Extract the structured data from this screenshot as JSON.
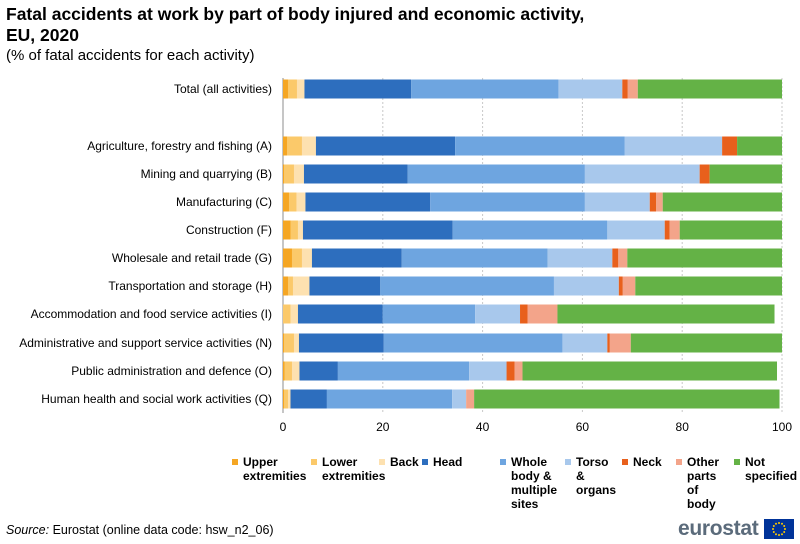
{
  "title": "Fatal accidents at work by part of body injured and economic activity, EU, 2020",
  "subtitle": "(% of fatal accidents for each activity)",
  "source_label": "Source:",
  "source_text": "Eurostat (online data code: hsw_n2_06)",
  "logo_text": "eurostat",
  "chart_data": {
    "type": "bar",
    "orientation": "horizontal",
    "stacked": true,
    "title": "Fatal accidents at work by part of body injured and economic activity, EU, 2020",
    "subtitle": "(% of fatal accidents for each activity)",
    "xlim": [
      0,
      100
    ],
    "xticks": [
      0,
      20,
      40,
      60,
      80,
      100
    ],
    "grid": "vertical dashed",
    "legend_position": "bottom",
    "categories": [
      "Total (all activities)",
      "Agriculture, forestry and fishing (A)",
      "Mining and quarrying (B)",
      "Manufacturing (C)",
      "Construction (F)",
      "Wholesale and retail trade (G)",
      "Transportation and storage (H)",
      "Accommodation and food service activities (I)",
      "Administrative and support service activities (N)",
      "Public administration and defence (O)",
      "Human health and social work activities (Q)"
    ],
    "series": [
      {
        "name": "Upper\nextremities",
        "color": "#f5a623",
        "values": [
          1.0,
          0.8,
          0.2,
          1.2,
          1.5,
          1.8,
          1.0,
          0.0,
          0.2,
          0.3,
          0.2
        ]
      },
      {
        "name": "Lower\nextremities",
        "color": "#fbc96a",
        "values": [
          1.8,
          3.0,
          2.0,
          1.5,
          1.5,
          2.0,
          1.0,
          1.5,
          2.0,
          1.5,
          0.8
        ]
      },
      {
        "name": "Back",
        "color": "#fde1b0",
        "values": [
          1.5,
          2.8,
          2.0,
          1.8,
          1.0,
          2.0,
          3.3,
          1.5,
          1.0,
          1.5,
          0.5
        ]
      },
      {
        "name": "Head",
        "color": "#2d6ebe",
        "values": [
          21.4,
          27.9,
          20.8,
          25.0,
          30.0,
          18.0,
          14.2,
          17.0,
          17.0,
          7.7,
          7.3
        ]
      },
      {
        "name": "Whole\nbody &\nmultiple\nsites",
        "color": "#6ea5e0",
        "values": [
          29.5,
          34.0,
          35.5,
          31.0,
          31.0,
          29.2,
          34.8,
          18.5,
          35.8,
          26.3,
          25.1
        ]
      },
      {
        "name": "Torso &\norgans",
        "color": "#a8c8ec",
        "values": [
          12.8,
          19.5,
          23.0,
          13.0,
          11.5,
          13.0,
          13.0,
          9.0,
          9.0,
          7.5,
          2.8
        ]
      },
      {
        "name": "Neck",
        "color": "#e8601c",
        "values": [
          1.1,
          3.0,
          2.0,
          1.3,
          1.0,
          1.2,
          0.8,
          1.5,
          0.5,
          1.6,
          0.0
        ]
      },
      {
        "name": "Other\nparts\nof body",
        "color": "#f3a48a",
        "values": [
          2.0,
          0.0,
          0.0,
          1.3,
          2.0,
          1.8,
          2.5,
          6.0,
          4.2,
          1.6,
          1.6
        ]
      },
      {
        "name": "Not\nspecified",
        "color": "#64b246",
        "values": [
          28.9,
          9.0,
          14.5,
          23.9,
          20.5,
          31.0,
          29.4,
          43.5,
          30.3,
          51.0,
          61.2
        ]
      }
    ]
  }
}
